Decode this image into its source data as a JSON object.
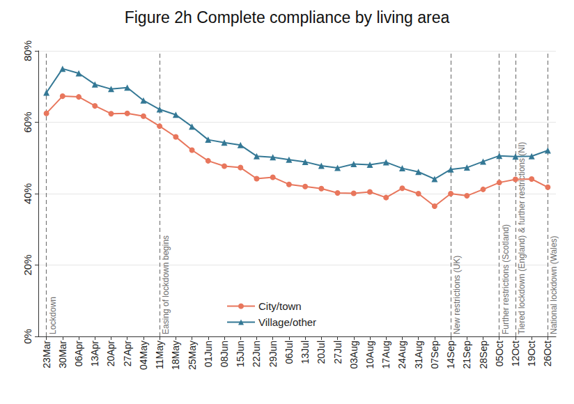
{
  "chart_data": {
    "type": "line",
    "title": "Figure 2h Complete compliance by living area",
    "categories": [
      "23Mar",
      "30Mar",
      "06Apr",
      "13Apr",
      "20Apr",
      "27Apr",
      "04May",
      "11May",
      "18May",
      "25May",
      "01Jun",
      "08Jun",
      "15Jun",
      "22Jun",
      "29Jun",
      "06Jul",
      "13Jul",
      "20Jul",
      "27Jul",
      "03Aug",
      "10Aug",
      "17Aug",
      "24Aug",
      "31Aug",
      "07Sep",
      "14Sep",
      "21Sep",
      "28Sep",
      "05Oct",
      "12Oct",
      "19Oct",
      "26Oct"
    ],
    "series": [
      {
        "name": "City/town",
        "color": "#e8765c",
        "marker": "circle",
        "values": [
          62.5,
          67.3,
          67.1,
          64.6,
          62.4,
          62.5,
          61.7,
          58.9,
          55.9,
          52.2,
          49.2,
          47.7,
          47.3,
          44.2,
          44.6,
          42.6,
          42.0,
          41.4,
          40.2,
          40.1,
          40.5,
          38.9,
          41.5,
          40.0,
          36.5,
          40.0,
          39.4,
          41.2,
          43.1,
          44.0,
          44.1,
          41.8
        ]
      },
      {
        "name": "Village/other",
        "color": "#347895",
        "marker": "triangle",
        "values": [
          68.3,
          75.0,
          73.7,
          70.6,
          69.3,
          69.7,
          66.1,
          63.6,
          62.1,
          58.8,
          55.1,
          54.3,
          53.6,
          50.5,
          50.2,
          49.5,
          48.9,
          47.8,
          47.2,
          48.3,
          48.1,
          48.8,
          47.1,
          46.1,
          44.1,
          46.8,
          47.3,
          49.0,
          50.6,
          50.4,
          50.5,
          52.1
        ]
      }
    ],
    "ylim": [
      0,
      80
    ],
    "yticks": [
      {
        "value": 0,
        "label": "0%"
      },
      {
        "value": 20,
        "label": "20%"
      },
      {
        "value": 40,
        "label": "40%"
      },
      {
        "value": 60,
        "label": "60%"
      },
      {
        "value": 80,
        "label": "80%"
      }
    ],
    "grid": true,
    "legend": "bottom",
    "annotations": [
      {
        "x": "23Mar",
        "label": "Lockdown"
      },
      {
        "x": "11May",
        "label": "Easing of lockdown begins"
      },
      {
        "x": "14Sep",
        "label": "New restrictions (UK)"
      },
      {
        "x": "05Oct",
        "label": "Further restrictions (Scotland)"
      },
      {
        "x": "12Oct",
        "label": "Tiered lockdown (England) & further restrictions (NI)"
      },
      {
        "x": "26Oct",
        "label": "National lockdown (Wales)"
      }
    ]
  }
}
